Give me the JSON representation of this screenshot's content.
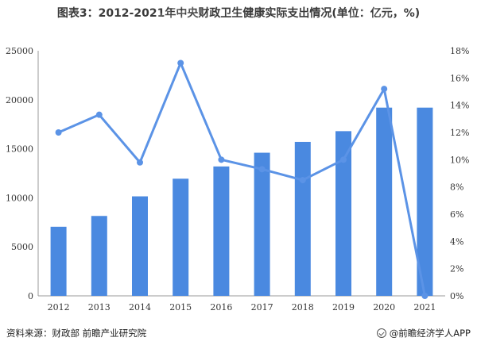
{
  "title": "图表3：2012-2021年中央财政卫生健康实际支出情况(单位：亿元，%)",
  "source": "资料来源：财政部 前瞻产业研究院",
  "brand": "@前瞻经济学人APP",
  "watermark": "前瞻产业研究院",
  "colors": {
    "bar": "#4a89e0",
    "line": "#5b93e6",
    "axis": "#9a9a9a"
  },
  "chart_data": {
    "type": "bar+line",
    "categories": [
      "2012",
      "2013",
      "2014",
      "2015",
      "2016",
      "2017",
      "2018",
      "2019",
      "2020",
      "2021"
    ],
    "series": [
      {
        "axis": "left",
        "type": "bar",
        "values": [
          7050,
          8150,
          10150,
          11950,
          13200,
          14600,
          15700,
          16800,
          19200,
          19200
        ]
      },
      {
        "axis": "right",
        "type": "line",
        "values": [
          12.0,
          13.3,
          9.8,
          17.1,
          10.0,
          9.3,
          8.5,
          10.0,
          15.2,
          0.0
        ]
      }
    ],
    "y_left": {
      "min": 0,
      "max": 25000,
      "ticks": [
        0,
        5000,
        10000,
        15000,
        20000,
        25000
      ]
    },
    "y_right": {
      "min": 0,
      "max": 18,
      "ticks": [
        "0%",
        "2%",
        "4%",
        "6%",
        "8%",
        "10%",
        "12%",
        "14%",
        "16%",
        "18%"
      ]
    },
    "grid": false
  }
}
